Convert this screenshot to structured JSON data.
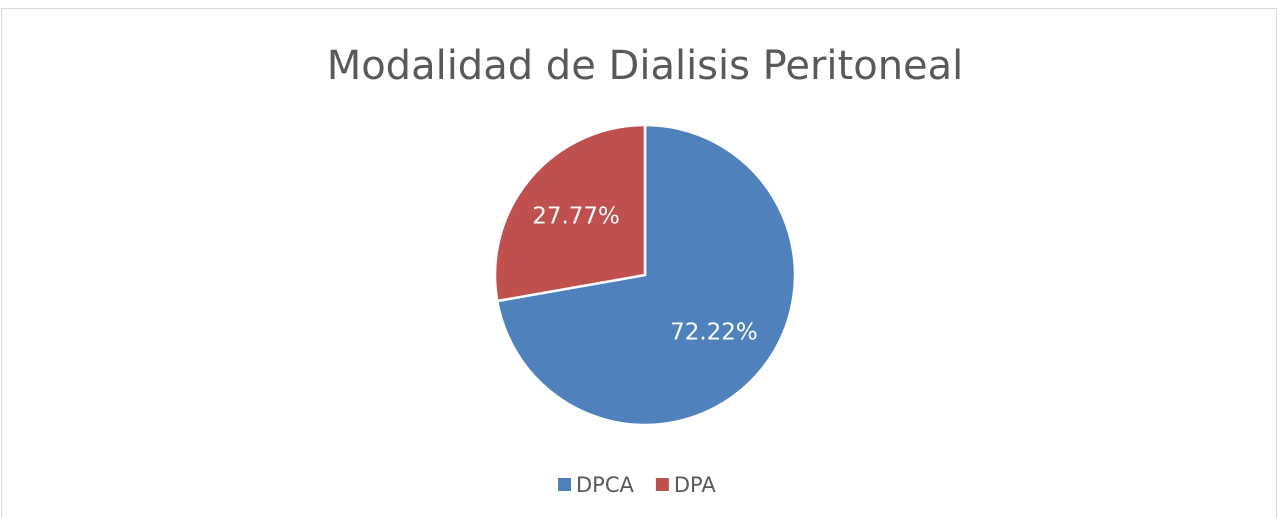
{
  "chart_data": {
    "type": "pie",
    "title": "Modalidad de Dialisis Peritoneal",
    "categories": [
      "DPCA",
      "DPA"
    ],
    "values": [
      72.22,
      27.77
    ],
    "value_labels": [
      "72.22%",
      "27.77%"
    ],
    "colors": [
      "#4f81bd",
      "#c0504d"
    ],
    "legend": "bottom"
  }
}
